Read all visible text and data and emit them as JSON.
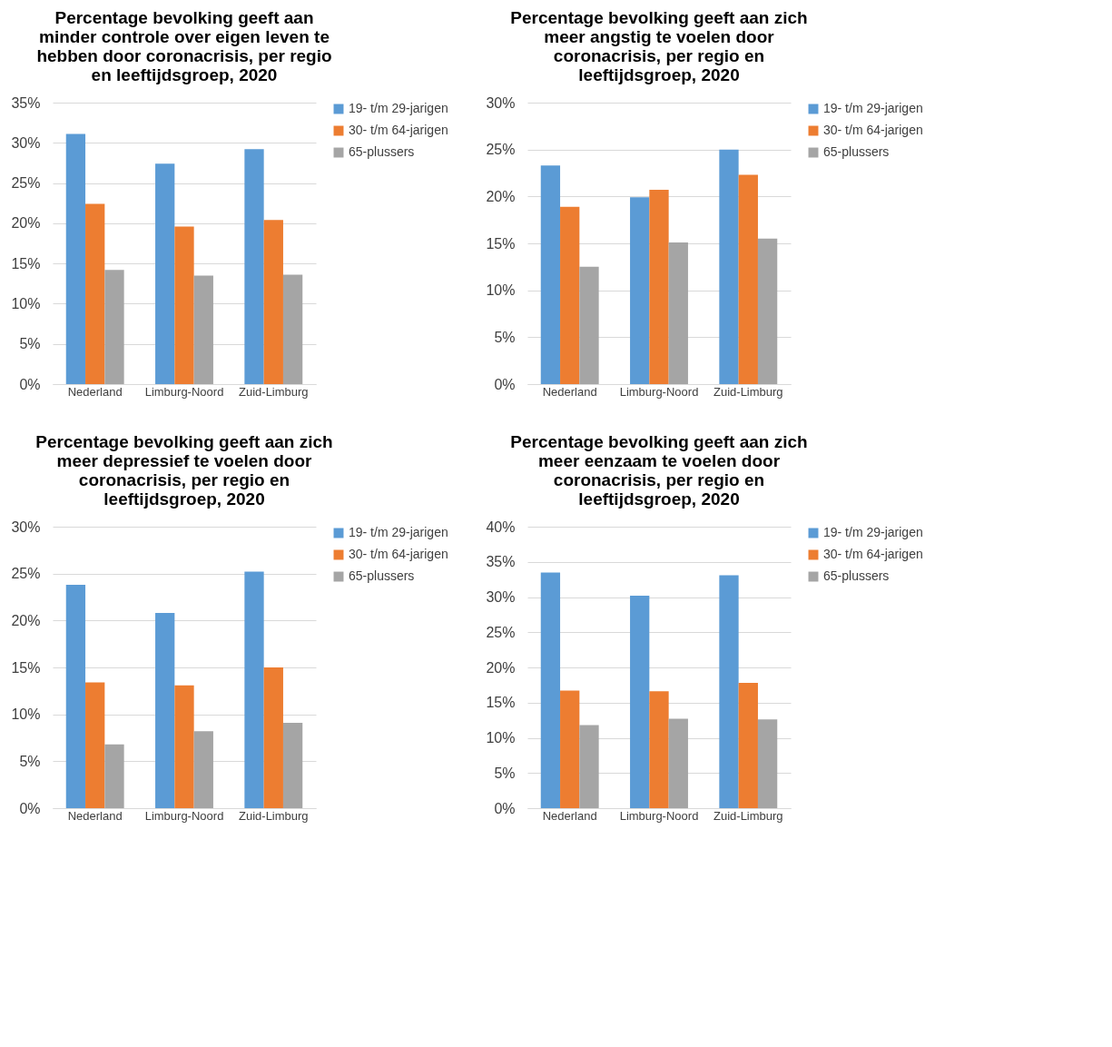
{
  "chart_data": [
    {
      "type": "bar",
      "title": "Percentage bevolking geeft aan minder controle over eigen leven te hebben door coronacrisis, per regio en leeftijdsgroep, 2020",
      "categories": [
        "Nederland",
        "Limburg-Noord",
        "Zuid-Limburg"
      ],
      "series": [
        {
          "name": "19- t/m 29-jarigen",
          "color": "#5b9bd5",
          "values": [
            31.1,
            27.4,
            29.2
          ]
        },
        {
          "name": "30- t/m 64-jarigen",
          "color": "#ed7d31",
          "values": [
            22.4,
            19.6,
            20.4
          ]
        },
        {
          "name": "65-plussers",
          "color": "#a5a5a5",
          "values": [
            14.2,
            13.5,
            13.6
          ]
        }
      ],
      "ylim": [
        0,
        35
      ],
      "yticks": [
        {
          "value": 0,
          "label": "0%"
        },
        {
          "value": 5,
          "label": "5%"
        },
        {
          "value": 10,
          "label": "10%"
        },
        {
          "value": 15,
          "label": "15%"
        },
        {
          "value": 20,
          "label": "20%"
        },
        {
          "value": 25,
          "label": "25%"
        },
        {
          "value": 30,
          "label": "30%"
        },
        {
          "value": 35,
          "label": "35%"
        }
      ],
      "grid": "y",
      "legend": "right"
    },
    {
      "type": "bar",
      "title": "Percentage bevolking geeft aan zich meer angstig te voelen door coronacrisis, per regio en leeftijdsgroep, 2020",
      "categories": [
        "Nederland",
        "Limburg-Noord",
        "Zuid-Limburg"
      ],
      "series": [
        {
          "name": "19- t/m 29-jarigen",
          "color": "#5b9bd5",
          "values": [
            23.3,
            19.9,
            25.0
          ]
        },
        {
          "name": "30- t/m 64-jarigen",
          "color": "#ed7d31",
          "values": [
            18.9,
            20.7,
            22.3
          ]
        },
        {
          "name": "65-plussers",
          "color": "#a5a5a5",
          "values": [
            12.5,
            15.1,
            15.5
          ]
        }
      ],
      "ylim": [
        0,
        30
      ],
      "yticks": [
        {
          "value": 0,
          "label": "0%"
        },
        {
          "value": 5,
          "label": "5%"
        },
        {
          "value": 10,
          "label": "10%"
        },
        {
          "value": 15,
          "label": "15%"
        },
        {
          "value": 20,
          "label": "20%"
        },
        {
          "value": 25,
          "label": "25%"
        },
        {
          "value": 30,
          "label": "30%"
        }
      ],
      "grid": "y",
      "legend": "right"
    },
    {
      "type": "bar",
      "title": "Percentage bevolking geeft aan zich meer depressief te voelen door coronacrisis, per regio en leeftijdsgroep, 2020",
      "categories": [
        "Nederland",
        "Limburg-Noord",
        "Zuid-Limburg"
      ],
      "series": [
        {
          "name": "19- t/m 29-jarigen",
          "color": "#5b9bd5",
          "values": [
            23.8,
            20.8,
            25.2
          ]
        },
        {
          "name": "30- t/m 64-jarigen",
          "color": "#ed7d31",
          "values": [
            13.4,
            13.1,
            15.0
          ]
        },
        {
          "name": "65-plussers",
          "color": "#a5a5a5",
          "values": [
            6.8,
            8.2,
            9.1
          ]
        }
      ],
      "ylim": [
        0,
        30
      ],
      "yticks": [
        {
          "value": 0,
          "label": "0%"
        },
        {
          "value": 5,
          "label": "5%"
        },
        {
          "value": 10,
          "label": "10%"
        },
        {
          "value": 15,
          "label": "15%"
        },
        {
          "value": 20,
          "label": "20%"
        },
        {
          "value": 25,
          "label": "25%"
        },
        {
          "value": 30,
          "label": "30%"
        }
      ],
      "grid": "y",
      "legend": "right"
    },
    {
      "type": "bar",
      "title": "Percentage bevolking geeft aan zich meer eenzaam te voelen door coronacrisis, per regio en leeftijdsgroep, 2020",
      "categories": [
        "Nederland",
        "Limburg-Noord",
        "Zuid-Limburg"
      ],
      "series": [
        {
          "name": "19- t/m 29-jarigen",
          "color": "#5b9bd5",
          "values": [
            33.5,
            30.2,
            33.1
          ]
        },
        {
          "name": "30- t/m 64-jarigen",
          "color": "#ed7d31",
          "values": [
            16.7,
            16.6,
            17.8
          ]
        },
        {
          "name": "65-plussers",
          "color": "#a5a5a5",
          "values": [
            11.8,
            12.7,
            12.6
          ]
        }
      ],
      "ylim": [
        0,
        40
      ],
      "yticks": [
        {
          "value": 0,
          "label": "0%"
        },
        {
          "value": 5,
          "label": "5%"
        },
        {
          "value": 10,
          "label": "10%"
        },
        {
          "value": 15,
          "label": "15%"
        },
        {
          "value": 20,
          "label": "20%"
        },
        {
          "value": 25,
          "label": "25%"
        },
        {
          "value": 30,
          "label": "30%"
        },
        {
          "value": 35,
          "label": "35%"
        },
        {
          "value": 40,
          "label": "40%"
        }
      ],
      "grid": "y",
      "legend": "right"
    }
  ]
}
